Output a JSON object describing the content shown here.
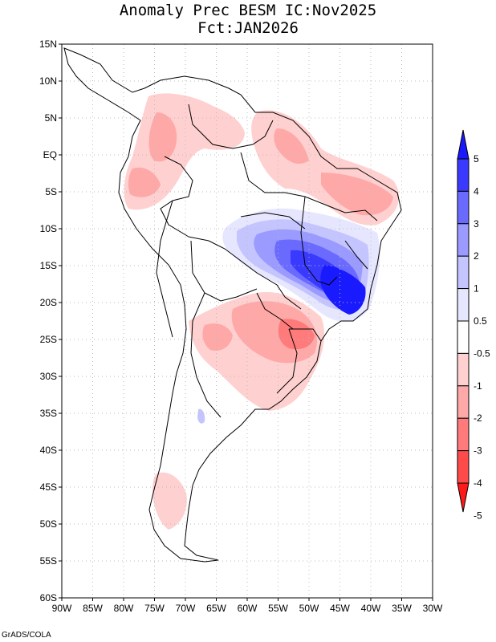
{
  "header": {
    "title_line1": "Anomaly Prec BESM IC:Nov2025",
    "title_line2": "Fct:JAN2026"
  },
  "map": {
    "lon_range": [
      -90,
      -30
    ],
    "lat_range": [
      -60,
      15
    ],
    "lon_ticks": [
      "90W",
      "85W",
      "80W",
      "75W",
      "70W",
      "65W",
      "60W",
      "55W",
      "50W",
      "45W",
      "40W",
      "35W",
      "30W"
    ],
    "lat_ticks": [
      "15N",
      "10N",
      "5N",
      "EQ",
      "5S",
      "10S",
      "15S",
      "20S",
      "25S",
      "30S",
      "35S",
      "40S",
      "45S",
      "50S",
      "55S",
      "60S"
    ]
  },
  "colorbar": {
    "labels": [
      "5",
      "4",
      "3",
      "2",
      "1",
      "0.5",
      "-0.5",
      "-1",
      "-2",
      "-3",
      "-4",
      "-5"
    ],
    "colors": [
      "#1a1aff",
      "#3a3aff",
      "#6a6aff",
      "#9a9aff",
      "#c4c4ff",
      "#e6e6ff",
      "#ffffff",
      "#ffd0d0",
      "#ffa8a8",
      "#ff7a7a",
      "#ff4a4a",
      "#ff1a1a"
    ]
  },
  "footer": {
    "credit": "GrADS/COLA"
  }
}
